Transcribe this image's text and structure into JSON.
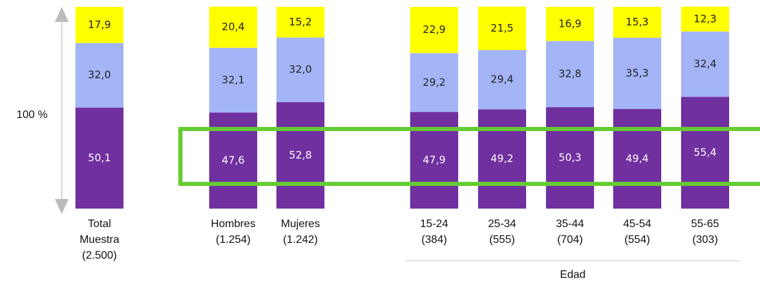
{
  "chart_data": {
    "type": "stacked_bar",
    "axis_label": "100 %",
    "group_label": "Edad",
    "categories": [
      [
        "Total",
        "Muestra",
        "(2.500)"
      ],
      [
        "Hombres",
        "(1.254)"
      ],
      [
        "Mujeres",
        "(1.242)"
      ],
      [
        "15-24",
        "(384)"
      ],
      [
        "25-34",
        "(555)"
      ],
      [
        "35-44",
        "(704)"
      ],
      [
        "45-54",
        "(554)"
      ],
      [
        "55-65",
        "(303)"
      ]
    ],
    "series": [
      {
        "color": "#7030a0",
        "values": [
          50.1,
          47.6,
          52.8,
          47.9,
          49.2,
          50.3,
          49.4,
          55.4
        ],
        "value_labels": [
          "50,1",
          "47,6",
          "52,8",
          "47,9",
          "49,2",
          "50,3",
          "49,4",
          "55,4"
        ]
      },
      {
        "color": "#a3b5f7",
        "values": [
          32.0,
          32.1,
          32.0,
          29.2,
          29.4,
          32.8,
          35.3,
          32.4
        ],
        "value_labels": [
          "32,0",
          "32,1",
          "32,0",
          "29,2",
          "29,4",
          "32,8",
          "35,3",
          "32,4"
        ]
      },
      {
        "color": "#ffff00",
        "values": [
          17.9,
          20.4,
          15.2,
          22.9,
          21.5,
          16.9,
          15.3,
          12.3
        ],
        "value_labels": [
          "17,9",
          "20,4",
          "15,2",
          "22,9",
          "21,5",
          "16,9",
          "15,3",
          "12,3"
        ]
      }
    ],
    "ylim": [
      0,
      100
    ]
  }
}
